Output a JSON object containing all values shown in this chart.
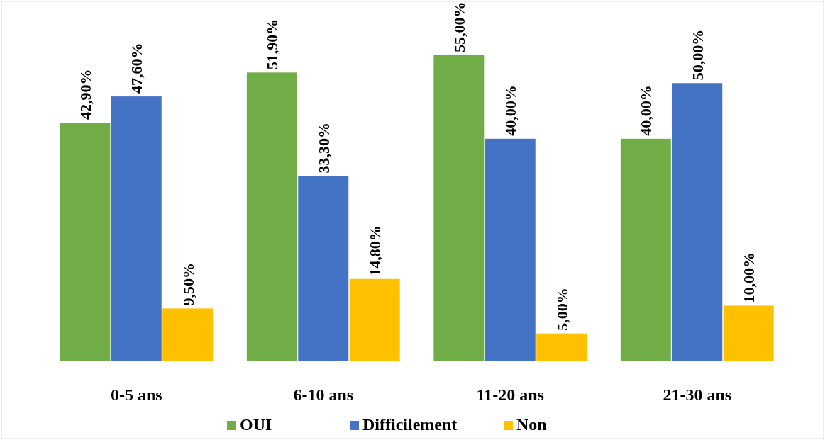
{
  "chart_data": {
    "type": "bar",
    "categories": [
      "0-5 ans",
      "6-10 ans",
      "11-20 ans",
      "21-30 ans"
    ],
    "series": [
      {
        "name": "OUI",
        "color": "#70ad47",
        "values": [
          42.9,
          51.9,
          55,
          40
        ],
        "value_labels": [
          "42,90%",
          "51,90%",
          "55,00%",
          "40,00%"
        ]
      },
      {
        "name": "Difficilement",
        "color": "#4472c4",
        "values": [
          47.6,
          33.3,
          40,
          50
        ],
        "value_labels": [
          "47,60%",
          "33,30%",
          "40,00%",
          "50,00%"
        ]
      },
      {
        "name": "Non",
        "color": "#ffc000",
        "values": [
          9.5,
          14.8,
          5,
          10
        ],
        "value_labels": [
          "9,50%",
          "14,80%",
          "5,00%",
          "10,00%"
        ]
      }
    ],
    "legend": "bottom"
  }
}
